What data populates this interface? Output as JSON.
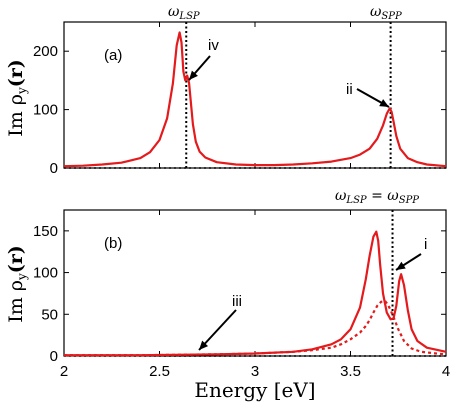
{
  "chart_data": [
    {
      "panel": "(a)",
      "type": "line",
      "xlim": [
        2,
        4
      ],
      "ylim": [
        0,
        250
      ],
      "xticks": [
        2,
        2.5,
        3,
        3.5,
        4
      ],
      "yticks": [
        0,
        100,
        200
      ],
      "ylabel": "Im ρ_y(r)",
      "top_labels": [
        "ω_LSP",
        "ω_SPP"
      ],
      "vlines": [
        2.64,
        3.71
      ],
      "series": [
        {
          "style": "solid",
          "color": "#e41a1c",
          "x": [
            2.0,
            2.1,
            2.2,
            2.3,
            2.4,
            2.45,
            2.5,
            2.54,
            2.57,
            2.59,
            2.605,
            2.615,
            2.625,
            2.635,
            2.645,
            2.655,
            2.665,
            2.675,
            2.69,
            2.71,
            2.74,
            2.8,
            2.9,
            3.0,
            3.1,
            3.2,
            3.3,
            3.4,
            3.5,
            3.55,
            3.6,
            3.64,
            3.67,
            3.69,
            3.705,
            3.715,
            3.725,
            3.74,
            3.76,
            3.8,
            3.85,
            3.9,
            4.0
          ],
          "y": [
            3,
            4,
            6,
            9,
            17,
            27,
            48,
            85,
            145,
            210,
            232,
            215,
            165,
            150,
            158,
            145,
            110,
            75,
            45,
            28,
            18,
            10,
            6,
            5,
            5,
            6,
            8,
            11,
            17,
            23,
            33,
            50,
            73,
            93,
            102,
            96,
            80,
            55,
            33,
            17,
            10,
            6,
            3
          ]
        }
      ],
      "annotations": [
        {
          "text": "iv",
          "x": 2.64,
          "y": 150
        },
        {
          "text": "ii",
          "x": 3.71,
          "y": 100
        }
      ]
    },
    {
      "panel": "(b)",
      "type": "line",
      "xlim": [
        2,
        4
      ],
      "ylim": [
        0,
        175
      ],
      "xticks": [
        2,
        2.5,
        3,
        3.5,
        4
      ],
      "yticks": [
        0,
        50,
        100,
        150
      ],
      "xlabel": "Energy [eV]",
      "ylabel": "Im ρ_y(r)",
      "top_labels": [
        "ω_LSP = ω_SPP"
      ],
      "vlines": [
        3.72
      ],
      "series": [
        {
          "style": "solid",
          "color": "#e41a1c",
          "x": [
            2.0,
            2.4,
            2.8,
            3.0,
            3.2,
            3.3,
            3.4,
            3.45,
            3.5,
            3.55,
            3.58,
            3.6,
            3.62,
            3.635,
            3.645,
            3.655,
            3.67,
            3.69,
            3.71,
            3.725,
            3.74,
            3.755,
            3.765,
            3.78,
            3.8,
            3.82,
            3.85,
            3.9,
            4.0
          ],
          "y": [
            1,
            1,
            2,
            3,
            5,
            8,
            14,
            20,
            32,
            58,
            92,
            120,
            143,
            149,
            138,
            110,
            75,
            52,
            44,
            45,
            60,
            90,
            98,
            85,
            55,
            32,
            18,
            10,
            5
          ]
        },
        {
          "style": "dotted",
          "color": "#e41a1c",
          "x": [
            2.0,
            2.4,
            2.8,
            3.0,
            3.2,
            3.3,
            3.4,
            3.45,
            3.5,
            3.55,
            3.58,
            3.6,
            3.62,
            3.64,
            3.66,
            3.68,
            3.695,
            3.71,
            3.73,
            3.75,
            3.78,
            3.82,
            3.87,
            3.95,
            4.0
          ],
          "y": [
            1,
            1,
            2,
            3,
            5,
            7,
            10,
            14,
            20,
            28,
            36,
            43,
            52,
            60,
            65,
            66,
            62,
            55,
            44,
            32,
            18,
            9,
            5,
            3,
            2
          ]
        }
      ],
      "annotations": [
        {
          "text": "iii",
          "x": 2.7,
          "y": 3
        },
        {
          "text": "i",
          "x": 3.72,
          "y": 100
        }
      ]
    }
  ],
  "xlabel_text": "Energy [eV]",
  "ylabel_a": "Im ρ",
  "ylabel_b": "Im ρ",
  "ysub": "y",
  "yarg": "(r)",
  "panel_a": "(a)",
  "panel_b": "(b)",
  "top_a1": "ω",
  "top_a1_sub": "LSP",
  "top_a2": "ω",
  "top_a2_sub": "SPP",
  "top_b_left": "ω",
  "top_b_left_sub": "LSP",
  "top_b_eq": " = ",
  "top_b_right": "ω",
  "top_b_right_sub": "SPP",
  "ann_iv": "iv",
  "ann_ii": "ii",
  "ann_iii": "iii",
  "ann_i": "i",
  "xticks_text": [
    "2",
    "2.5",
    "3",
    "3.5",
    "4"
  ],
  "yticks_a_text": [
    "0",
    "100",
    "200"
  ],
  "yticks_b_text": [
    "0",
    "50",
    "100",
    "150"
  ]
}
